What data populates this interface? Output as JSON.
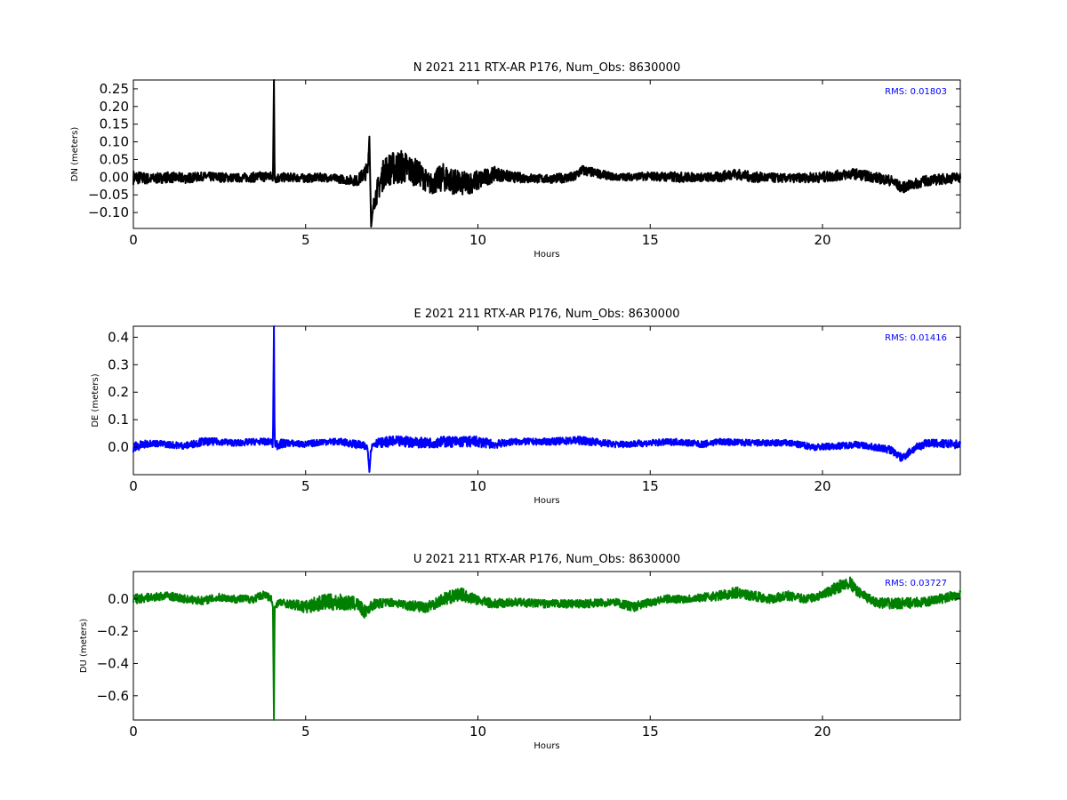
{
  "chart_data": [
    {
      "type": "line",
      "title": "N 2021 211 RTX-AR  P176, Num_Obs: 8630000",
      "xlabel": "Hours",
      "ylabel": "DN (meters)",
      "xlim": [
        0,
        24
      ],
      "ylim": [
        -0.145,
        0.275
      ],
      "xticks": [
        0,
        5,
        10,
        15,
        20
      ],
      "xtick_labels": [
        "0",
        "5",
        "10",
        "15",
        "20"
      ],
      "yticks": [
        -0.1,
        -0.05,
        0.0,
        0.05,
        0.1,
        0.15,
        0.2,
        0.25
      ],
      "ytick_labels": [
        "−0.10",
        "−0.05",
        "0.00",
        "0.05",
        "0.10",
        "0.15",
        "0.20",
        "0.25"
      ],
      "annotation": "RMS:  0.01803",
      "color": "#000000",
      "grid": false,
      "series": [
        {
          "x": [
            0,
            0.5,
            1,
            1.5,
            2,
            2.5,
            3,
            3.5,
            3.9,
            4.05,
            4.08,
            4.1,
            4.15,
            4.5,
            5,
            5.5,
            6,
            6.5,
            6.8,
            6.85,
            6.9,
            7,
            7.3,
            7.8,
            8.3,
            8.6,
            9,
            9.5,
            10,
            10.5,
            11,
            12,
            12.8,
            13,
            14,
            15,
            15.8,
            16.5,
            17,
            17.4,
            18,
            19,
            20,
            20.9,
            21.5,
            22,
            22.3,
            23,
            24
          ],
          "y": [
            0.0,
            -0.005,
            0.0,
            -0.003,
            0.002,
            0.0,
            -0.002,
            0.0,
            0.003,
            0.0,
            0.275,
            0.0,
            -0.002,
            0.0,
            -0.003,
            0.0,
            -0.005,
            -0.01,
            0.02,
            0.115,
            -0.14,
            -0.06,
            0.02,
            0.03,
            0.01,
            -0.02,
            0.0,
            -0.02,
            -0.01,
            0.01,
            0.0,
            -0.005,
            0.0,
            0.02,
            0.0,
            0.003,
            0.0,
            0.0,
            0.0,
            0.01,
            0.0,
            -0.003,
            0.0,
            0.01,
            0.0,
            -0.01,
            -0.03,
            -0.01,
            0.0
          ],
          "amplitude": [
            0.02,
            0.015,
            0.015,
            0.015,
            0.012,
            0.014,
            0.012,
            0.014,
            0.015,
            0.015,
            0.0,
            0.015,
            0.015,
            0.012,
            0.012,
            0.012,
            0.012,
            0.015,
            0.025,
            0.0,
            0.0,
            0.03,
            0.045,
            0.05,
            0.035,
            0.03,
            0.04,
            0.035,
            0.03,
            0.02,
            0.015,
            0.012,
            0.015,
            0.015,
            0.01,
            0.012,
            0.015,
            0.012,
            0.015,
            0.015,
            0.015,
            0.012,
            0.015,
            0.015,
            0.015,
            0.015,
            0.015,
            0.015,
            0.015
          ]
        }
      ]
    },
    {
      "type": "line",
      "title": "E 2021 211 RTX-AR  P176, Num_Obs: 8630000",
      "xlabel": "Hours",
      "ylabel": "DE (meters)",
      "xlim": [
        0,
        24
      ],
      "ylim": [
        -0.1,
        0.44
      ],
      "xticks": [
        0,
        5,
        10,
        15,
        20
      ],
      "xtick_labels": [
        "0",
        "5",
        "10",
        "15",
        "20"
      ],
      "yticks": [
        0.0,
        0.1,
        0.2,
        0.3,
        0.4
      ],
      "ytick_labels": [
        "0.0",
        "0.1",
        "0.2",
        "0.3",
        "0.4"
      ],
      "annotation": "RMS:  0.01416",
      "color": "#0000ff",
      "grid": false,
      "series": [
        {
          "x": [
            0,
            0.5,
            1,
            1.5,
            2,
            2.5,
            3,
            3.5,
            4.0,
            4.05,
            4.08,
            4.1,
            4.15,
            4.5,
            5,
            5.5,
            6,
            6.5,
            6.8,
            6.85,
            6.9,
            7,
            7.5,
            8,
            8.5,
            9,
            9.5,
            10,
            10.5,
            11,
            12,
            13,
            14,
            15,
            15.8,
            16.5,
            17,
            18,
            19,
            19.8,
            20.5,
            21,
            21.5,
            22,
            22.3,
            22.6,
            23,
            24
          ],
          "y": [
            0.0,
            0.015,
            0.01,
            0.005,
            0.02,
            0.02,
            0.015,
            0.02,
            0.02,
            0.01,
            0.44,
            0.02,
            0.01,
            0.015,
            0.01,
            0.02,
            0.02,
            0.01,
            0.0,
            -0.09,
            0.0,
            0.015,
            0.02,
            0.02,
            0.015,
            0.02,
            0.02,
            0.02,
            0.01,
            0.02,
            0.02,
            0.025,
            0.01,
            0.015,
            0.02,
            0.01,
            0.02,
            0.015,
            0.015,
            0.0,
            0.005,
            0.01,
            0.0,
            -0.01,
            -0.04,
            -0.01,
            0.015,
            0.01
          ],
          "amplitude": [
            0.02,
            0.012,
            0.012,
            0.012,
            0.015,
            0.012,
            0.012,
            0.012,
            0.012,
            0.02,
            0.0,
            0.02,
            0.02,
            0.012,
            0.012,
            0.012,
            0.012,
            0.015,
            0.015,
            0.0,
            0.015,
            0.015,
            0.02,
            0.02,
            0.018,
            0.02,
            0.02,
            0.02,
            0.015,
            0.012,
            0.012,
            0.015,
            0.012,
            0.012,
            0.012,
            0.012,
            0.012,
            0.012,
            0.012,
            0.012,
            0.012,
            0.012,
            0.012,
            0.015,
            0.015,
            0.015,
            0.015,
            0.015
          ]
        }
      ]
    },
    {
      "type": "line",
      "title": "U 2021 211 RTX-AR  P176, Num_Obs: 8630000",
      "xlabel": "Hours",
      "ylabel": "DU (meters)",
      "xlim": [
        0,
        24
      ],
      "ylim": [
        -0.75,
        0.17
      ],
      "xticks": [
        0,
        5,
        10,
        15,
        20
      ],
      "xtick_labels": [
        "0",
        "5",
        "10",
        "15",
        "20"
      ],
      "yticks": [
        -0.6,
        -0.4,
        -0.2,
        0.0
      ],
      "ytick_labels": [
        "−0.6",
        "−0.4",
        "−0.2",
        "0.0"
      ],
      "annotation": "RMS:  0.03727",
      "color": "#008000",
      "grid": false,
      "series": [
        {
          "x": [
            0,
            0.5,
            1,
            1.5,
            2,
            2.5,
            3,
            3.5,
            3.8,
            4.0,
            4.05,
            4.08,
            4.1,
            4.2,
            4.5,
            5,
            5.5,
            6,
            6.5,
            6.7,
            7,
            7.5,
            8,
            8.5,
            9,
            9.5,
            10,
            10.5,
            11,
            12,
            13,
            14,
            14.5,
            15,
            15.5,
            16,
            16.5,
            17,
            17.5,
            18,
            18.5,
            19,
            19.5,
            20,
            20.5,
            20.8,
            21,
            21.5,
            22,
            23,
            24
          ],
          "y": [
            0.0,
            0.01,
            0.02,
            0.0,
            -0.01,
            0.01,
            0.0,
            0.0,
            0.03,
            0.0,
            -0.05,
            -0.75,
            -0.05,
            -0.02,
            -0.03,
            -0.05,
            -0.02,
            -0.02,
            -0.03,
            -0.08,
            -0.03,
            -0.02,
            -0.04,
            -0.05,
            0.0,
            0.03,
            -0.01,
            -0.03,
            -0.02,
            -0.03,
            -0.03,
            -0.02,
            -0.05,
            -0.02,
            0.0,
            0.0,
            0.01,
            0.02,
            0.04,
            0.02,
            0.0,
            0.02,
            0.0,
            0.02,
            0.08,
            0.1,
            0.05,
            -0.02,
            -0.03,
            -0.02,
            0.03
          ],
          "amplitude": [
            0.03,
            0.025,
            0.025,
            0.025,
            0.025,
            0.025,
            0.025,
            0.025,
            0.025,
            0.025,
            0.0,
            0.0,
            0.02,
            0.025,
            0.025,
            0.04,
            0.05,
            0.05,
            0.04,
            0.04,
            0.03,
            0.025,
            0.03,
            0.035,
            0.04,
            0.04,
            0.03,
            0.03,
            0.025,
            0.025,
            0.025,
            0.025,
            0.03,
            0.025,
            0.025,
            0.025,
            0.025,
            0.03,
            0.035,
            0.03,
            0.03,
            0.03,
            0.025,
            0.03,
            0.04,
            0.04,
            0.03,
            0.03,
            0.035,
            0.03,
            0.03
          ]
        }
      ]
    }
  ]
}
